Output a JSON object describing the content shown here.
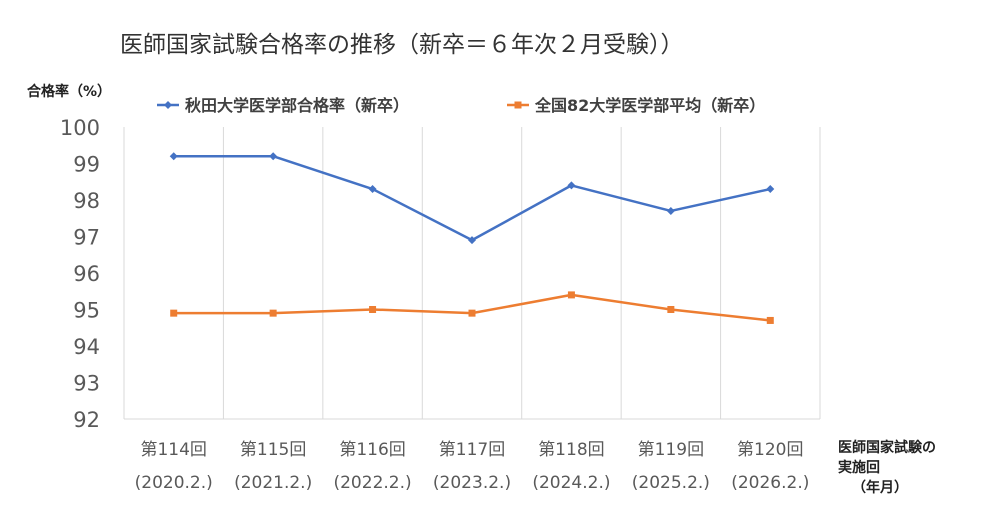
{
  "chart_data": {
    "type": "line",
    "title": "医師国家試験合格率の推移（新卒＝６年次２月受験））",
    "ylabel": "合格率（%）",
    "xlabel": [
      "医師国家試験の",
      "実施回",
      "（年月）"
    ],
    "categories": [
      [
        "第114回",
        "(2020.2.)"
      ],
      [
        "第115回",
        "(2021.2.)"
      ],
      [
        "第116回",
        "(2022.2.)"
      ],
      [
        "第117回",
        "(2023.2.)"
      ],
      [
        "第118回",
        "(2024.2.)"
      ],
      [
        "第119回",
        "(2025.2.)"
      ],
      [
        "第120回",
        "(2026.2.)"
      ]
    ],
    "ylim": [
      92,
      100
    ],
    "yticks": [
      100,
      99,
      98,
      97,
      96,
      95,
      94,
      93,
      92
    ],
    "grid": "vertical",
    "legend_position": "top",
    "series": [
      {
        "name": "秋田大学医学部合格率（新卒）",
        "color": "#4472C4",
        "marker": "diamond",
        "values": [
          99.2,
          99.2,
          98.3,
          96.9,
          98.4,
          97.7,
          98.3
        ]
      },
      {
        "name": "全国82大学医学部平均（新卒）",
        "color": "#ED7D31",
        "marker": "square",
        "values": [
          94.9,
          94.9,
          95.0,
          94.9,
          95.4,
          95.0,
          94.7
        ]
      }
    ]
  }
}
